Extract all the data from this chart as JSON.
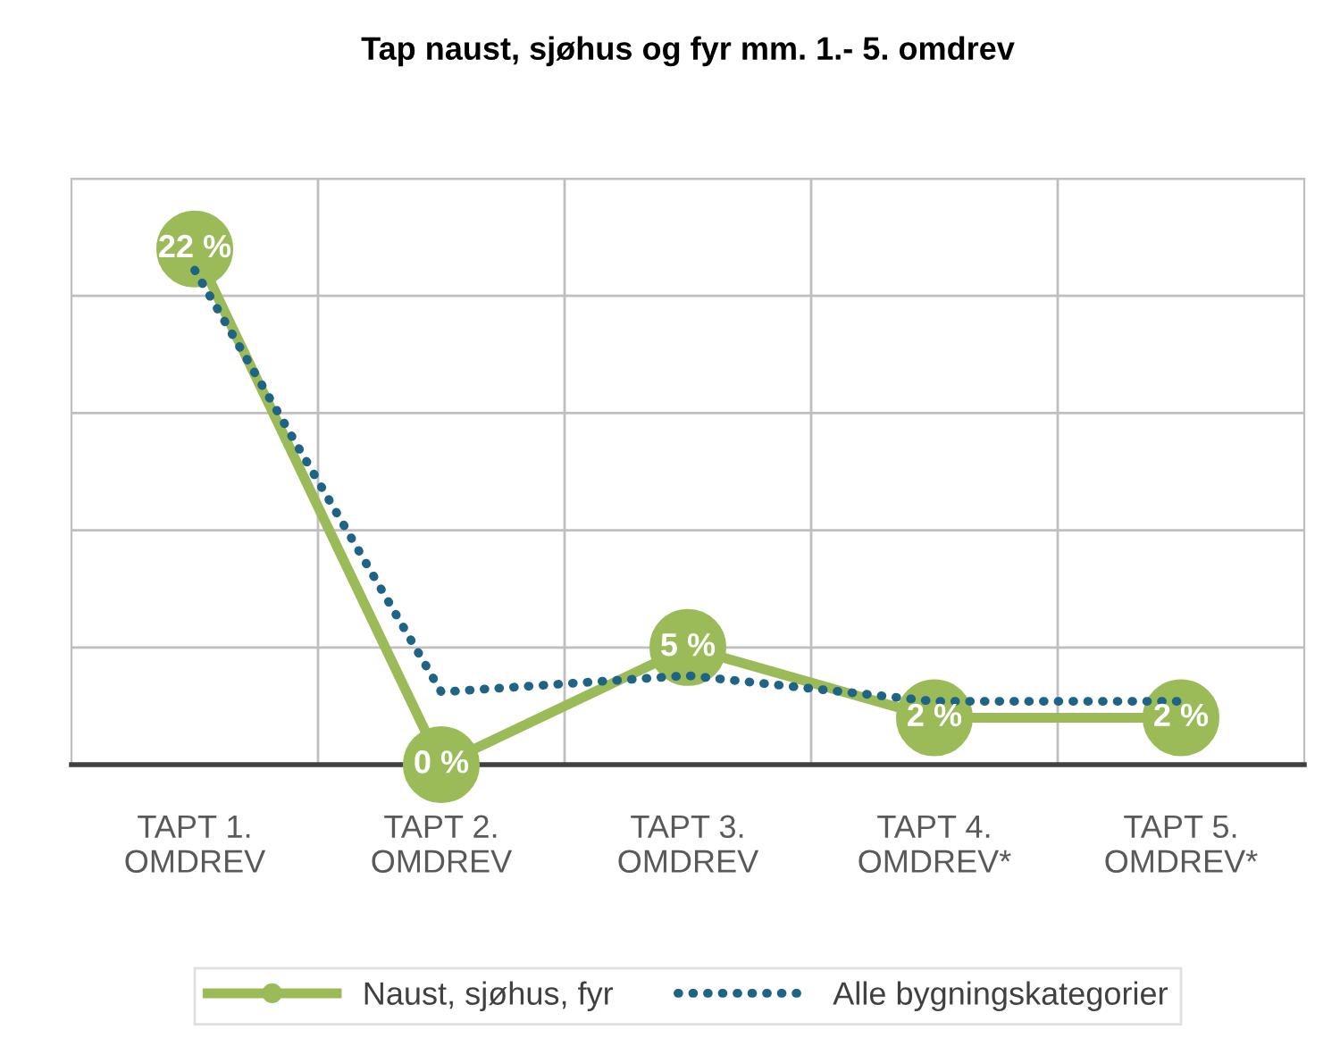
{
  "chart_data": {
    "type": "line",
    "title": "Tap naust, sjøhus og fyr mm. 1.- 5. omdrev",
    "categories": [
      "TAPT 1.\nOMDREV",
      "TAPT 2.\nOMDREV",
      "TAPT 3.\nOMDREV",
      "TAPT 4.\nOMDREV*",
      "TAPT 5.\nOMDREV*"
    ],
    "series": [
      {
        "name": "Naust, sjøhus, fyr",
        "color": "#9bbb59",
        "values": [
          22,
          0,
          5,
          2,
          2
        ],
        "marker": "circle",
        "line_style": "solid",
        "value_labels": [
          "22 %",
          "0 %",
          "5 %",
          "2 %",
          "2 %"
        ]
      },
      {
        "name": "Alle bygningskategorier",
        "color": "#1f6385",
        "values": [
          21.1,
          3.1,
          3.8,
          2.7,
          2.7
        ],
        "marker": "none",
        "line_style": "dotted"
      }
    ],
    "ylim": [
      0,
      25
    ],
    "yticks": [
      {
        "value": 0,
        "label": null
      },
      {
        "value": 5,
        "label": null
      },
      {
        "value": 10,
        "label": null
      },
      {
        "value": 15,
        "label": null
      },
      {
        "value": 20,
        "label": null
      },
      {
        "value": 25,
        "label": null
      }
    ],
    "tick_labels": "x",
    "grid": true,
    "legend": "bottom"
  }
}
